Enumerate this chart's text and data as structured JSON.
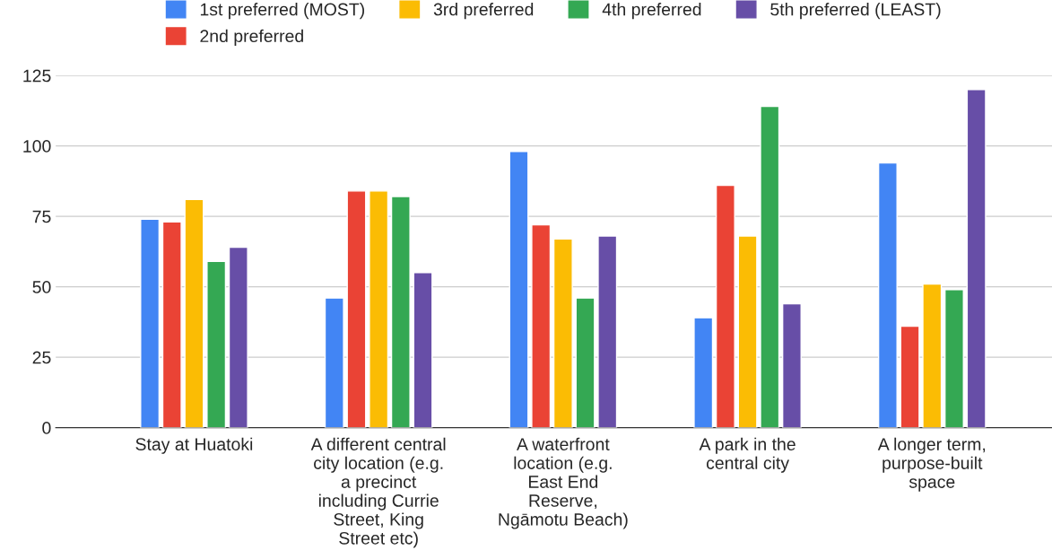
{
  "chart_data": {
    "type": "bar",
    "categories": [
      "Stay at Huatoki",
      "A different central\ncity location (e.g.\na precinct\nincluding Currie\nStreet, King\nStreet etc)",
      "A waterfront\nlocation (e.g.\nEast End\nReserve,\nNgāmotu Beach)",
      "A park in the\ncentral city",
      "A longer term,\npurpose-built\nspace"
    ],
    "series": [
      {
        "name": "1st preferred (MOST)",
        "color": "#4285f4",
        "values": [
          74,
          46,
          98,
          39,
          94
        ]
      },
      {
        "name": "2nd preferred",
        "color": "#ea4335",
        "values": [
          73,
          84,
          72,
          86,
          36
        ]
      },
      {
        "name": "3rd preferred",
        "color": "#fbbc04",
        "values": [
          81,
          84,
          67,
          68,
          51
        ]
      },
      {
        "name": "4th preferred",
        "color": "#34a853",
        "values": [
          59,
          82,
          46,
          114,
          49
        ]
      },
      {
        "name": "5th preferred (LEAST)",
        "color": "#674ea7",
        "values": [
          64,
          55,
          68,
          44,
          120
        ]
      }
    ],
    "ylim": [
      0,
      125
    ],
    "yticks": [
      0,
      25,
      50,
      75,
      100,
      125
    ],
    "grid": "y",
    "legend": "top"
  }
}
